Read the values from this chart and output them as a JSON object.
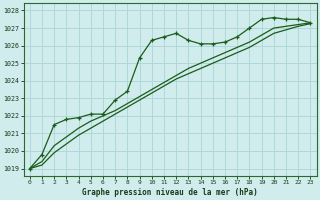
{
  "title": "Graphe pression niveau de la mer (hPa)",
  "background_color": "#d0ecec",
  "grid_color": "#b0d8d8",
  "line_color": "#1a5c1a",
  "xlim": [
    -0.5,
    23.5
  ],
  "ylim": [
    1018.6,
    1028.4
  ],
  "yticks": [
    1019,
    1020,
    1021,
    1022,
    1023,
    1024,
    1025,
    1026,
    1027,
    1028
  ],
  "xticks": [
    0,
    1,
    2,
    3,
    4,
    5,
    6,
    7,
    8,
    9,
    10,
    11,
    12,
    13,
    14,
    15,
    16,
    17,
    18,
    19,
    20,
    21,
    22,
    23
  ],
  "series1_x": [
    0,
    1,
    2,
    3,
    4,
    5,
    6,
    7,
    8,
    9,
    10,
    11,
    12,
    13,
    14,
    15,
    16,
    17,
    18,
    19,
    20,
    21,
    22,
    23
  ],
  "series1_y": [
    1019.0,
    1019.8,
    1021.5,
    1021.8,
    1021.9,
    1022.1,
    1022.1,
    1022.9,
    1023.4,
    1025.3,
    1026.3,
    1026.5,
    1026.7,
    1026.3,
    1026.1,
    1026.1,
    1026.2,
    1026.5,
    1027.0,
    1027.5,
    1027.6,
    1027.5,
    1027.5,
    1027.3
  ],
  "series2_x": [
    0,
    1,
    2,
    3,
    4,
    5,
    6,
    7,
    8,
    9,
    10,
    11,
    12,
    13,
    14,
    15,
    16,
    17,
    18,
    19,
    20,
    21,
    22,
    23
  ],
  "series2_y": [
    1019.0,
    1019.4,
    1020.3,
    1020.8,
    1021.3,
    1021.7,
    1022.0,
    1022.3,
    1022.7,
    1023.1,
    1023.5,
    1023.9,
    1024.3,
    1024.7,
    1025.0,
    1025.3,
    1025.6,
    1025.9,
    1026.2,
    1026.6,
    1027.0,
    1027.1,
    1027.2,
    1027.3
  ],
  "series3_x": [
    0,
    1,
    2,
    3,
    4,
    5,
    6,
    7,
    8,
    9,
    10,
    11,
    12,
    13,
    14,
    15,
    16,
    17,
    18,
    19,
    20,
    21,
    22,
    23
  ],
  "series3_y": [
    1019.0,
    1019.2,
    1019.9,
    1020.4,
    1020.9,
    1021.3,
    1021.7,
    1022.1,
    1022.5,
    1022.9,
    1023.3,
    1023.7,
    1024.1,
    1024.4,
    1024.7,
    1025.0,
    1025.3,
    1025.6,
    1025.9,
    1026.3,
    1026.7,
    1026.9,
    1027.1,
    1027.25
  ]
}
